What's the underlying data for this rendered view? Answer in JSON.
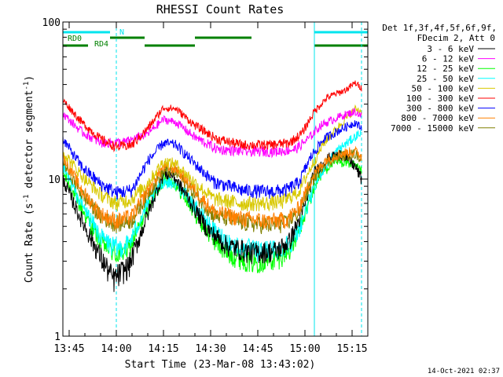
{
  "chart_data": {
    "type": "line",
    "title": "RHESSI Count Rates",
    "xlabel": "Start Time (23-Mar-08 13:43:02)",
    "ylabel_main": "Count Rate (s",
    "ylabel_sup": "-1",
    "ylabel_mid": " detector segment",
    "ylabel_sup2": "-1",
    "ylabel_end": ")",
    "yscale": "log",
    "ylim": [
      1,
      100
    ],
    "xlim_minutes": [
      -2,
      95
    ],
    "x_ticks": [
      {
        "min": 0,
        "label": "13:45"
      },
      {
        "min": 15,
        "label": "14:00"
      },
      {
        "min": 30,
        "label": "14:15"
      },
      {
        "min": 45,
        "label": "14:30"
      },
      {
        "min": 60,
        "label": "14:45"
      },
      {
        "min": 75,
        "label": "15:00"
      },
      {
        "min": 90,
        "label": "15:15"
      }
    ],
    "y_tick_labels": [
      {
        "v": 1,
        "label": "1"
      },
      {
        "v": 10,
        "label": "10"
      },
      {
        "v": 100,
        "label": "100"
      }
    ],
    "legend_header": [
      "Det 1f,3f,4f,5f,6f,9f,",
      "FDecim 2, Att 0"
    ],
    "series": [
      {
        "name": "3 - 6 keV",
        "color": "#000000",
        "knots": [
          [
            -2,
            10
          ],
          [
            3,
            6
          ],
          [
            10,
            3.2
          ],
          [
            14,
            2.3
          ],
          [
            19,
            2.8
          ],
          [
            25,
            6
          ],
          [
            30,
            10.8
          ],
          [
            33,
            10.6
          ],
          [
            38,
            7.5
          ],
          [
            44,
            4.8
          ],
          [
            50,
            3.8
          ],
          [
            58,
            3.4
          ],
          [
            66,
            3.5
          ],
          [
            70,
            4
          ],
          [
            74,
            6
          ],
          [
            78,
            11
          ],
          [
            82,
            13.5
          ],
          [
            87,
            14.5
          ],
          [
            91,
            12
          ],
          [
            93,
            10
          ]
        ]
      },
      {
        "name": "6 - 12 keV",
        "color": "#ff00ff",
        "knots": [
          [
            -2,
            26
          ],
          [
            4,
            20
          ],
          [
            10,
            17
          ],
          [
            18,
            17.2
          ],
          [
            25,
            19.5
          ],
          [
            30,
            24
          ],
          [
            34,
            23
          ],
          [
            40,
            18.5
          ],
          [
            47,
            15.5
          ],
          [
            56,
            15
          ],
          [
            66,
            15
          ],
          [
            72,
            15.5
          ],
          [
            76,
            18
          ],
          [
            80,
            22
          ],
          [
            86,
            25
          ],
          [
            91,
            27
          ],
          [
            93,
            25
          ]
        ]
      },
      {
        "name": "12 - 25 keV",
        "color": "#00ff00",
        "knots": [
          [
            -2,
            11
          ],
          [
            3,
            7
          ],
          [
            10,
            4
          ],
          [
            15,
            3.3
          ],
          [
            19,
            3.6
          ],
          [
            25,
            6.5
          ],
          [
            30,
            10
          ],
          [
            33,
            9.8
          ],
          [
            38,
            7
          ],
          [
            44,
            4.6
          ],
          [
            50,
            3.4
          ],
          [
            58,
            3
          ],
          [
            66,
            3.1
          ],
          [
            71,
            3.7
          ],
          [
            75,
            6
          ],
          [
            79,
            10
          ],
          [
            83,
            12.5
          ],
          [
            88,
            13
          ],
          [
            91,
            12
          ],
          [
            93,
            11
          ]
        ]
      },
      {
        "name": "25 - 50 keV",
        "color": "#00ffff",
        "knots": [
          [
            -2,
            12
          ],
          [
            3,
            7.5
          ],
          [
            10,
            4.3
          ],
          [
            15,
            3.6
          ],
          [
            19,
            3.9
          ],
          [
            25,
            7
          ],
          [
            30,
            9.7
          ],
          [
            34,
            9.4
          ],
          [
            40,
            6.8
          ],
          [
            46,
            4.7
          ],
          [
            52,
            3.8
          ],
          [
            60,
            3.5
          ],
          [
            67,
            3.6
          ],
          [
            72,
            4.2
          ],
          [
            76,
            7
          ],
          [
            80,
            11
          ],
          [
            85,
            15
          ],
          [
            90,
            18
          ],
          [
            93,
            20
          ]
        ]
      },
      {
        "name": "50 - 100 keV",
        "color": "#d8c800",
        "knots": [
          [
            -2,
            15
          ],
          [
            4,
            10.5
          ],
          [
            10,
            8
          ],
          [
            15,
            7
          ],
          [
            20,
            7.5
          ],
          [
            25,
            9.5
          ],
          [
            30,
            13
          ],
          [
            34,
            12.5
          ],
          [
            40,
            9.5
          ],
          [
            46,
            7.5
          ],
          [
            55,
            7
          ],
          [
            62,
            7
          ],
          [
            68,
            7.2
          ],
          [
            73,
            8.3
          ],
          [
            77,
            12
          ],
          [
            81,
            17
          ],
          [
            86,
            22
          ],
          [
            91,
            28
          ],
          [
            93,
            27
          ]
        ]
      },
      {
        "name": "100 - 300 keV",
        "color": "#ff0000",
        "knots": [
          [
            -2,
            32
          ],
          [
            4,
            23
          ],
          [
            10,
            18
          ],
          [
            15,
            16
          ],
          [
            20,
            16.5
          ],
          [
            25,
            21
          ],
          [
            30,
            28.5
          ],
          [
            34,
            28
          ],
          [
            40,
            22
          ],
          [
            47,
            18
          ],
          [
            55,
            16.5
          ],
          [
            64,
            16.5
          ],
          [
            70,
            17
          ],
          [
            74,
            19.5
          ],
          [
            78,
            27
          ],
          [
            82,
            33
          ],
          [
            88,
            37
          ],
          [
            91,
            41
          ],
          [
            93,
            38
          ]
        ]
      },
      {
        "name": "300 - 800 keV",
        "color": "#0000ff",
        "knots": [
          [
            -2,
            18
          ],
          [
            4,
            12
          ],
          [
            10,
            9.3
          ],
          [
            15,
            8.2
          ],
          [
            20,
            8.5
          ],
          [
            25,
            13
          ],
          [
            30,
            17
          ],
          [
            34,
            16.5
          ],
          [
            40,
            12.5
          ],
          [
            46,
            9.6
          ],
          [
            55,
            8.5
          ],
          [
            63,
            8.3
          ],
          [
            69,
            8.5
          ],
          [
            73,
            9.5
          ],
          [
            77,
            14
          ],
          [
            81,
            18
          ],
          [
            86,
            20.5
          ],
          [
            91,
            23
          ],
          [
            93,
            21
          ]
        ]
      },
      {
        "name": "800 - 7000 keV",
        "color": "#ff8000",
        "knots": [
          [
            -2,
            14
          ],
          [
            4,
            8.5
          ],
          [
            10,
            6
          ],
          [
            15,
            5.4
          ],
          [
            20,
            5.8
          ],
          [
            25,
            8.5
          ],
          [
            30,
            12
          ],
          [
            34,
            11.7
          ],
          [
            40,
            8.5
          ],
          [
            46,
            6.2
          ],
          [
            55,
            5.6
          ],
          [
            63,
            5.4
          ],
          [
            69,
            5.5
          ],
          [
            73,
            6.5
          ],
          [
            77,
            10
          ],
          [
            81,
            13
          ],
          [
            86,
            14.5
          ],
          [
            91,
            15
          ],
          [
            93,
            14
          ]
        ]
      },
      {
        "name": "7000 - 15000 keV",
        "color": "#808000",
        "knots": [
          [
            -2,
            13
          ],
          [
            4,
            8
          ],
          [
            10,
            5.8
          ],
          [
            15,
            5.2
          ],
          [
            20,
            5.5
          ],
          [
            25,
            8
          ],
          [
            30,
            11.3
          ],
          [
            34,
            11
          ],
          [
            40,
            8
          ],
          [
            46,
            5.9
          ],
          [
            55,
            5.3
          ],
          [
            63,
            5.1
          ],
          [
            69,
            5.2
          ],
          [
            73,
            6.2
          ],
          [
            77,
            9.5
          ],
          [
            81,
            12.5
          ],
          [
            86,
            14
          ],
          [
            91,
            14.5
          ],
          [
            93,
            13.5
          ]
        ]
      }
    ],
    "annotations": {
      "rd0_label": "RD0",
      "rd4_label": "RD4",
      "n_label": "N"
    },
    "timestamp": "14-Oct-2021 02:37"
  }
}
